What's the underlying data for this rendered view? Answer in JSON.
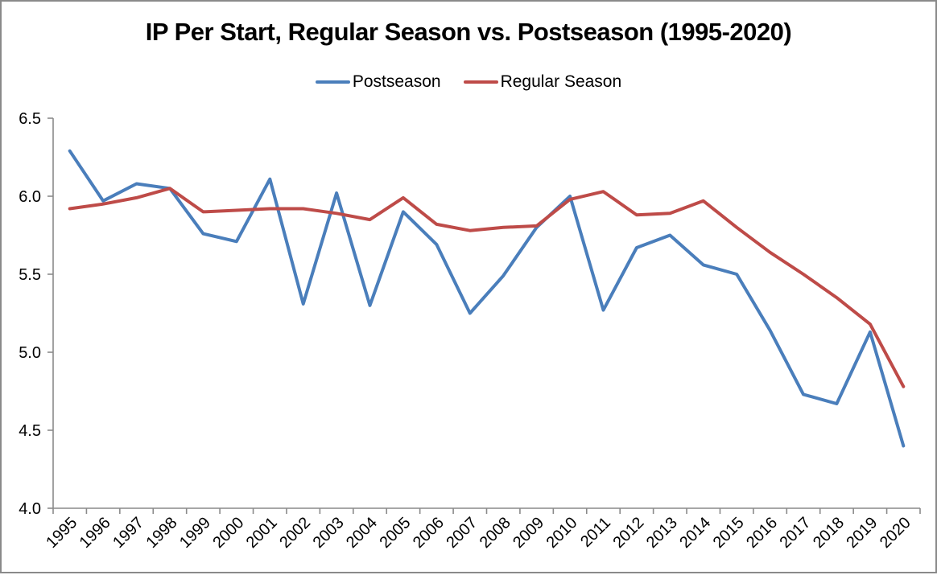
{
  "chart_data": {
    "type": "line",
    "title": "IP Per Start, Regular Season vs. Postseason (1995-2020)",
    "categories": [
      "1995",
      "1996",
      "1997",
      "1998",
      "1999",
      "2000",
      "2001",
      "2002",
      "2003",
      "2004",
      "2005",
      "2006",
      "2007",
      "2008",
      "2009",
      "2010",
      "2011",
      "2012",
      "2013",
      "2014",
      "2015",
      "2016",
      "2017",
      "2018",
      "2019",
      "2020"
    ],
    "series": [
      {
        "name": "Postseason",
        "color": "#4A7EBB",
        "values": [
          6.29,
          5.97,
          6.08,
          6.05,
          5.76,
          5.71,
          6.11,
          5.31,
          6.02,
          5.3,
          5.9,
          5.69,
          5.25,
          5.49,
          5.8,
          6.0,
          5.27,
          5.67,
          5.75,
          5.56,
          5.5,
          5.14,
          4.73,
          4.67,
          5.13,
          4.4
        ]
      },
      {
        "name": "Regular Season",
        "color": "#BE4B48",
        "values": [
          5.92,
          5.95,
          5.99,
          6.05,
          5.9,
          5.91,
          5.92,
          5.92,
          5.89,
          5.85,
          5.99,
          5.82,
          5.78,
          5.8,
          5.81,
          5.98,
          6.03,
          5.88,
          5.89,
          5.97,
          5.8,
          5.64,
          5.5,
          5.35,
          5.18,
          4.78
        ]
      }
    ],
    "xlabel": "",
    "ylabel": "",
    "ylim": [
      4.0,
      6.5
    ],
    "yticks": [
      6.5,
      6.0,
      5.5,
      5.0,
      4.5,
      4.0
    ],
    "ytick_labels": [
      "6.5",
      "6.0",
      "5.5",
      "5.0",
      "4.5",
      "4.0"
    ],
    "grid": false,
    "legend_position": "top-center",
    "axis_color": "#8A8A8A",
    "text_color": "#000000"
  }
}
